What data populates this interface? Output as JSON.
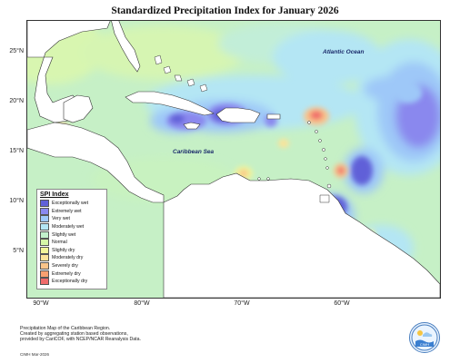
{
  "title": "Standardized Precipitation Index for January 2026",
  "map": {
    "y_ticks": [
      "25°N",
      "20°N",
      "15°N",
      "10°N",
      "5°N"
    ],
    "x_ticks": [
      "90°W",
      "80°W",
      "70°W",
      "60°W"
    ],
    "labels": {
      "atlantic": "Atlantic Ocean",
      "caribbean": "Caribbean Sea"
    }
  },
  "legend": {
    "title": "SPI Index",
    "items": [
      {
        "label": "Exceptionally wet",
        "color": "#6060d8"
      },
      {
        "label": "Extremely wet",
        "color": "#8a88ee"
      },
      {
        "label": "Very wet",
        "color": "#9ec8f8"
      },
      {
        "label": "Moderately wet",
        "color": "#b4e6f4"
      },
      {
        "label": "Slightly wet",
        "color": "#c2f0cc"
      },
      {
        "label": "Normal",
        "color": "#d6f7a8"
      },
      {
        "label": "Slightly dry",
        "color": "#f2f59a"
      },
      {
        "label": "Moderately dry",
        "color": "#fbe39a"
      },
      {
        "label": "Severely dry",
        "color": "#f9c48a"
      },
      {
        "label": "Extremely dry",
        "color": "#f8a070"
      },
      {
        "label": "Exceptionally dry",
        "color": "#f06b6b"
      }
    ]
  },
  "credit": {
    "line1": "Precipitation Map of the Caribbean Region.",
    "line2": "Created by aggregating station based observations,",
    "line3": "provided by CariCOF, with NCEP/NCAR Reanalysis Data.",
    "date": "CIMH Mar-2026"
  },
  "logo": {
    "text": "CIMH"
  }
}
